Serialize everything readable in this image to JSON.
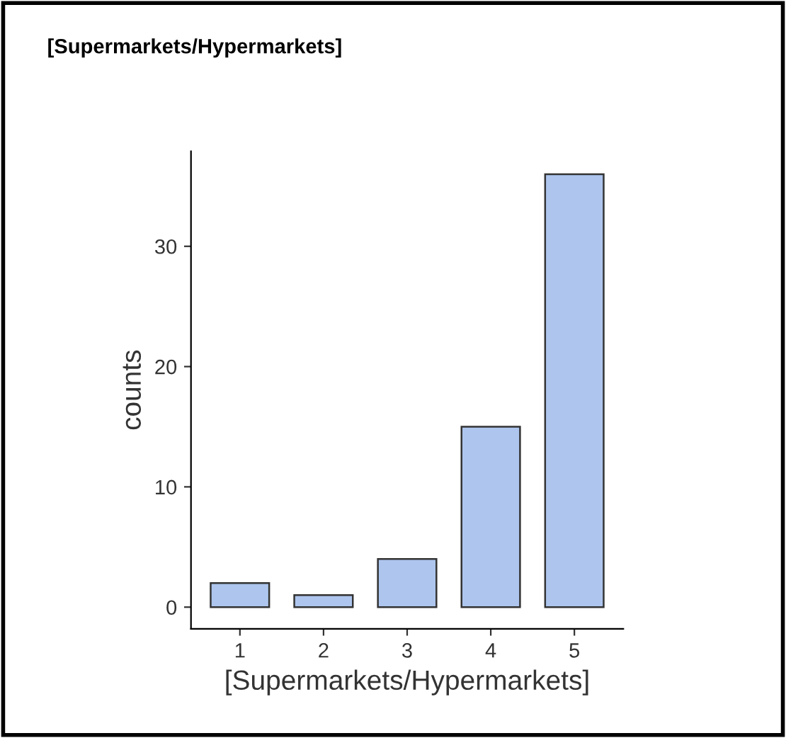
{
  "chart_data": {
    "type": "bar",
    "title": "[Supermarkets/Hypermarkets]",
    "xlabel": "[Supermarkets/Hypermarkets]",
    "ylabel": "counts",
    "categories": [
      "1",
      "2",
      "3",
      "4",
      "5"
    ],
    "values": [
      2,
      1,
      4,
      15,
      36
    ],
    "color": "#aec6ee",
    "ylim": [
      -1.8,
      37.9
    ],
    "yticks": [
      0,
      10,
      20,
      30
    ],
    "grid": false,
    "legend": false
  }
}
